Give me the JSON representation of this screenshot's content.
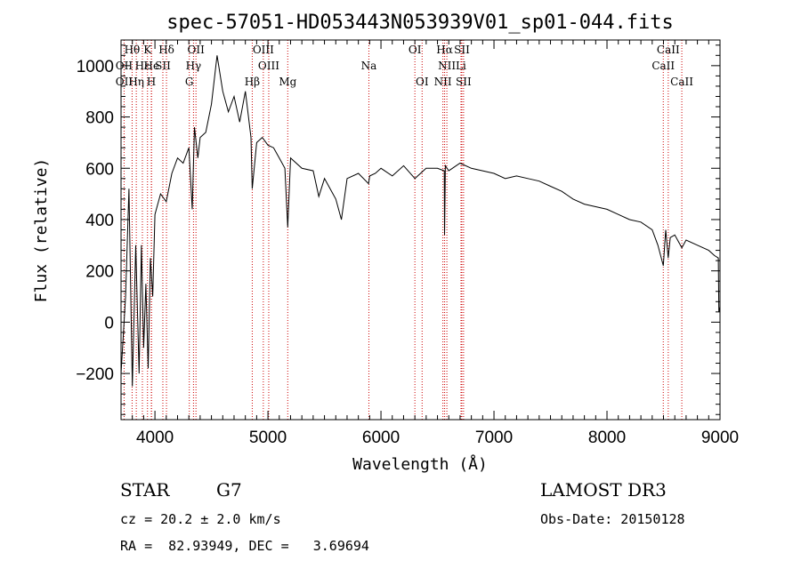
{
  "chart_data": {
    "type": "line",
    "title": "spec-57051-HD053443N053939V01_sp01-044.fits",
    "xlabel": "Wavelength (Å)",
    "ylabel": "Flux (relative)",
    "xlim": [
      3700,
      9000
    ],
    "ylim": [
      -380,
      1100
    ],
    "x_ticks": [
      4000,
      5000,
      6000,
      7000,
      8000,
      9000
    ],
    "y_ticks": [
      -200,
      0,
      200,
      400,
      600,
      800,
      1000
    ],
    "grid": false,
    "series": [
      {
        "x": [
          3700,
          3740,
          3770,
          3800,
          3830,
          3860,
          3880,
          3900,
          3920,
          3940,
          3960,
          3980,
          4000,
          4050,
          4100,
          4150,
          4200,
          4250,
          4300,
          4330,
          4350,
          4380,
          4400,
          4450,
          4500,
          4550,
          4600,
          4650,
          4700,
          4750,
          4800,
          4850,
          4861,
          4900,
          4950,
          5000,
          5050,
          5100,
          5150,
          5175,
          5200,
          5300,
          5400,
          5450,
          5500,
          5550,
          5600,
          5650,
          5700,
          5800,
          5890,
          5900,
          5950,
          6000,
          6100,
          6200,
          6300,
          6400,
          6500,
          6560,
          6563,
          6570,
          6600,
          6700,
          6800,
          6900,
          7000,
          7100,
          7200,
          7300,
          7400,
          7500,
          7600,
          7700,
          7800,
          7900,
          8000,
          8100,
          8200,
          8300,
          8400,
          8450,
          8498,
          8520,
          8542,
          8560,
          8600,
          8662,
          8700,
          8800,
          8900,
          8950,
          8985,
          8990,
          9000
        ],
        "y": [
          -200,
          100,
          520,
          -250,
          300,
          -200,
          300,
          -100,
          150,
          -180,
          250,
          100,
          420,
          500,
          470,
          580,
          640,
          620,
          680,
          440,
          760,
          640,
          720,
          740,
          850,
          1040,
          900,
          820,
          880,
          780,
          900,
          720,
          520,
          700,
          720,
          690,
          680,
          640,
          600,
          370,
          640,
          600,
          590,
          490,
          560,
          520,
          480,
          400,
          560,
          580,
          540,
          570,
          580,
          600,
          570,
          610,
          560,
          600,
          600,
          590,
          340,
          610,
          590,
          620,
          600,
          590,
          580,
          560,
          570,
          560,
          550,
          530,
          510,
          480,
          460,
          450,
          440,
          420,
          400,
          390,
          360,
          300,
          220,
          360,
          250,
          330,
          340,
          290,
          320,
          300,
          280,
          260,
          250,
          40,
          60
        ]
      }
    ],
    "lines_top_row": [
      {
        "label": "Hθ",
        "x": 3798
      },
      {
        "label": "K",
        "x": 3934
      },
      {
        "label": "Hδ",
        "x": 4102
      },
      {
        "label": "OII",
        "x": 4363
      },
      {
        "label": "OIII",
        "x": 4959
      },
      {
        "label": "OI",
        "x": 6300
      },
      {
        "label": "Hα",
        "x": 6563
      },
      {
        "label": "SII",
        "x": 6716
      },
      {
        "label": "CaII",
        "x": 8542
      }
    ],
    "lines_mid_row": [
      {
        "label": "OII",
        "x": 3727
      },
      {
        "label": "Hε",
        "x": 3889
      },
      {
        "label": "He",
        "x": 3970
      },
      {
        "label": "SII",
        "x": 4070
      },
      {
        "label": "Hγ",
        "x": 4341
      },
      {
        "label": "OIII",
        "x": 5007
      },
      {
        "label": "Na",
        "x": 5893
      },
      {
        "label": "NII",
        "x": 6583
      },
      {
        "label": "Li",
        "x": 6708
      },
      {
        "label": "CaII",
        "x": 8498
      }
    ],
    "lines_bottom_row": [
      {
        "label": "OII",
        "x": 3727
      },
      {
        "label": "Hη",
        "x": 3835
      },
      {
        "label": "H",
        "x": 3968
      },
      {
        "label": "G",
        "x": 4304
      },
      {
        "label": "Hβ",
        "x": 4861
      },
      {
        "label": "Mg",
        "x": 5175
      },
      {
        "label": "OI",
        "x": 6364
      },
      {
        "label": "NII",
        "x": 6548
      },
      {
        "label": "SII",
        "x": 6731
      },
      {
        "label": "CaII",
        "x": 8662
      }
    ]
  },
  "info": {
    "object_class": "STAR",
    "subclass": "G7",
    "survey": "LAMOST DR3",
    "cz": "cz = 20.2 ± 2.0 km/s",
    "obs_date": "Obs-Date: 20150128",
    "radec": "RA =  82.93949, DEC =   3.69694"
  },
  "colors": {
    "spectrum": "#000000",
    "line_markers": "#cc0000"
  }
}
